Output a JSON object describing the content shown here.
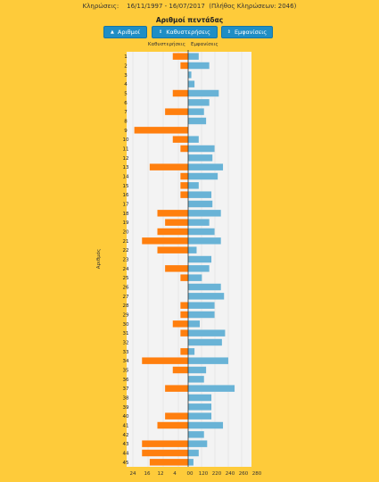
{
  "header": {
    "draws_label": "Κληρώσεις:",
    "date_range": "16/11/1997 - 16/07/2017",
    "draw_count": "(Πλήθος Κληρώσεων: 2046)"
  },
  "buttons": [
    {
      "label": "Αριθμοί",
      "icon": "sort-up-icon",
      "glyph": "▲"
    },
    {
      "label": "Καθυστερήσεις",
      "icon": "sort-icon",
      "glyph": "⇕"
    },
    {
      "label": "Εμφανίσεις",
      "icon": "sort-icon",
      "glyph": "⇕"
    }
  ],
  "chart_data": {
    "type": "bar",
    "title": "Αριθμοί πεντάδας",
    "left_series_label": "Καθυστερήσεις",
    "right_series_label": "Εμφανίσεις",
    "ylabel": "Αριθμός",
    "colors": {
      "delays": "#ff7f0e",
      "appearances": "#69b3d6",
      "grid": "#f3f3f3"
    },
    "categories": [
      "1",
      "2",
      "3",
      "4",
      "5",
      "6",
      "7",
      "8",
      "9",
      "10",
      "11",
      "12",
      "13",
      "14",
      "15",
      "16",
      "17",
      "18",
      "19",
      "20",
      "21",
      "22",
      "23",
      "24",
      "25",
      "26",
      "27",
      "28",
      "29",
      "30",
      "31",
      "32",
      "33",
      "34",
      "35",
      "36",
      "37",
      "38",
      "39",
      "40",
      "41",
      "42",
      "43",
      "44",
      "45"
    ],
    "delays": [
      2,
      1,
      0,
      0,
      2,
      0,
      3,
      0,
      7,
      2,
      1,
      0,
      5,
      1,
      1,
      1,
      0,
      4,
      3,
      4,
      6,
      4,
      0,
      3,
      1,
      0,
      0,
      1,
      1,
      2,
      1,
      0,
      1,
      6,
      2,
      0,
      3,
      0,
      0,
      3,
      4,
      0,
      6,
      6,
      5
    ],
    "appearances": [
      20,
      40,
      6,
      12,
      58,
      40,
      30,
      34,
      -1,
      20,
      50,
      46,
      66,
      56,
      20,
      44,
      46,
      62,
      40,
      50,
      62,
      16,
      44,
      40,
      26,
      62,
      68,
      50,
      50,
      22,
      70,
      64,
      12,
      76,
      34,
      30,
      88,
      44,
      44,
      44,
      66,
      30,
      36,
      20,
      10
    ],
    "left_ticks": [
      "24",
      "16",
      "12",
      "4"
    ],
    "right_ticks": [
      "00",
      "120",
      "220",
      "240",
      "260",
      "280"
    ],
    "left_max": 8,
    "right_max": 120,
    "grid": true
  }
}
